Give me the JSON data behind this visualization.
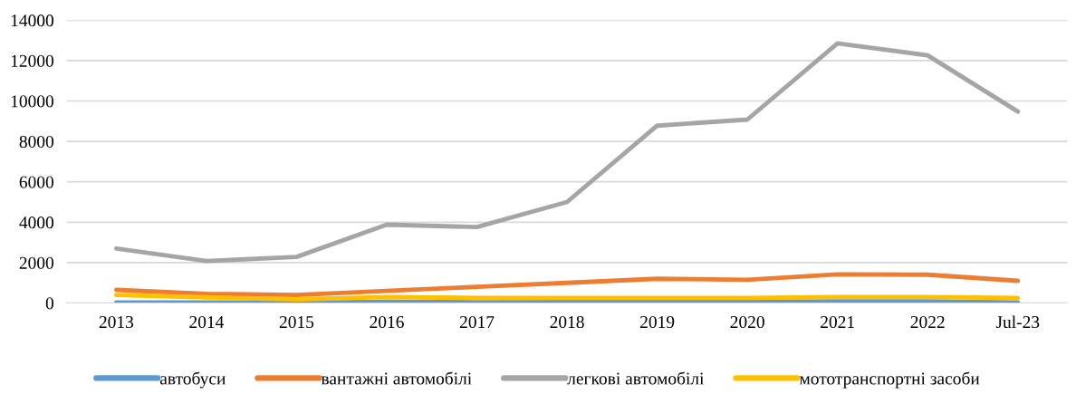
{
  "chart_data": {
    "type": "line",
    "categories": [
      "2013",
      "2014",
      "2015",
      "2016",
      "2017",
      "2018",
      "2019",
      "2020",
      "2021",
      "2022",
      "Jul-23"
    ],
    "series": [
      {
        "name": "автобуси",
        "color": "#5b9bd5",
        "values": [
          20,
          30,
          30,
          60,
          40,
          50,
          50,
          60,
          80,
          80,
          30
        ]
      },
      {
        "name": "вантажні автомобілі",
        "color": "#ed7d31",
        "values": [
          650,
          450,
          400,
          600,
          800,
          1000,
          1200,
          1150,
          1420,
          1400,
          1100
        ]
      },
      {
        "name": "легкові автомобілі",
        "color": "#a5a5a5",
        "values": [
          2700,
          2080,
          2280,
          3880,
          3760,
          5000,
          8780,
          9080,
          12850,
          12260,
          9480
        ]
      },
      {
        "name": "мототранспортні засоби",
        "color": "#ffc000",
        "values": [
          400,
          280,
          180,
          300,
          250,
          250,
          250,
          250,
          300,
          300,
          250
        ]
      }
    ],
    "ylim": [
      0,
      14000
    ],
    "yticks": [
      0,
      2000,
      4000,
      6000,
      8000,
      10000,
      12000,
      14000
    ],
    "grid": "y",
    "legend": "bottom",
    "marker": "none",
    "line_style": "solid"
  }
}
